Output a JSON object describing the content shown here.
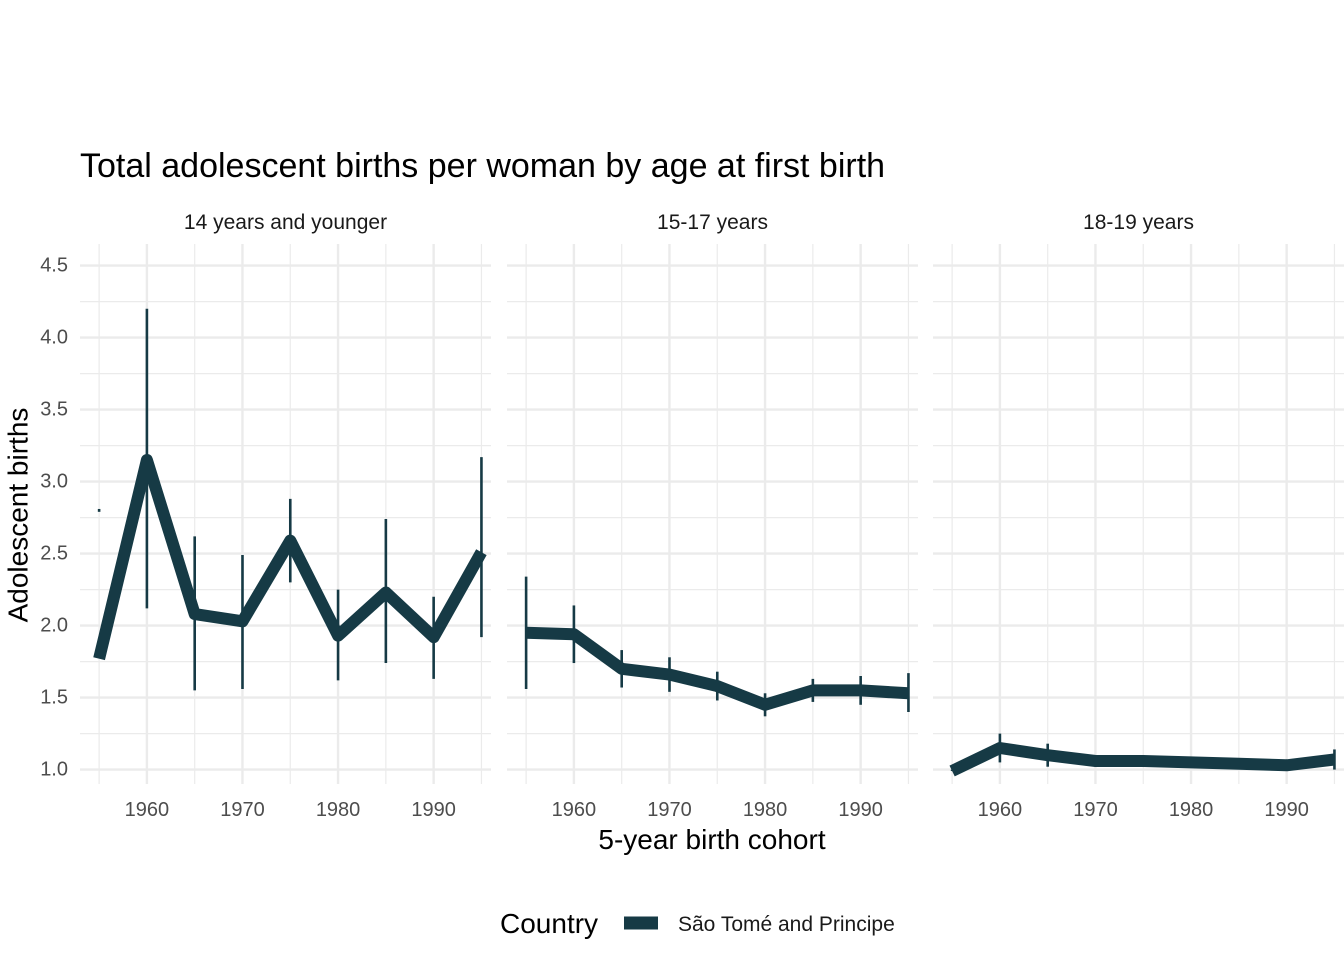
{
  "chart_data": {
    "type": "line",
    "title": "Total adolescent births per woman by age at first birth",
    "xlabel": "5-year birth cohort",
    "ylabel": "Adolescent births",
    "legend_title": "Country",
    "legend_position": "bottom",
    "grid": true,
    "xlim": [
      1953,
      1996
    ],
    "ylim": [
      0.9,
      4.65
    ],
    "x_ticks": [
      1960,
      1970,
      1980,
      1990
    ],
    "y_ticks": [
      1.0,
      1.5,
      2.0,
      2.5,
      3.0,
      3.5,
      4.0,
      4.5
    ],
    "colors": {
      "series": "#163a45",
      "grid": "#ebebeb"
    },
    "series": [
      {
        "name": "São Tomé and Principe"
      }
    ],
    "panels": [
      {
        "label": "14 years and younger",
        "x": [
          1955,
          1960,
          1965,
          1970,
          1975,
          1980,
          1985,
          1990,
          1995
        ],
        "y": [
          1.77,
          3.15,
          2.08,
          2.03,
          2.59,
          1.93,
          2.23,
          1.92,
          2.51
        ],
        "lower": [
          2.79,
          2.12,
          1.55,
          1.56,
          2.3,
          1.62,
          1.74,
          1.63,
          1.92
        ],
        "upper": [
          2.81,
          4.2,
          2.62,
          2.49,
          2.88,
          2.25,
          2.74,
          2.2,
          3.17
        ]
      },
      {
        "label": "15-17 years",
        "x": [
          1955,
          1960,
          1965,
          1970,
          1975,
          1980,
          1985,
          1990,
          1995
        ],
        "y": [
          1.95,
          1.94,
          1.7,
          1.66,
          1.58,
          1.45,
          1.55,
          1.55,
          1.53
        ],
        "lower": [
          1.56,
          1.74,
          1.57,
          1.54,
          1.48,
          1.37,
          1.47,
          1.45,
          1.4
        ],
        "upper": [
          2.34,
          2.14,
          1.83,
          1.78,
          1.68,
          1.53,
          1.63,
          1.65,
          1.67
        ]
      },
      {
        "label": "18-19 years",
        "x": [
          1955,
          1960,
          1965,
          1970,
          1975,
          1980,
          1985,
          1990,
          1995
        ],
        "y": [
          0.99,
          1.15,
          1.1,
          1.06,
          1.06,
          1.05,
          1.04,
          1.03,
          1.07
        ],
        "lower": [
          0.99,
          1.05,
          1.02,
          1.04,
          1.04,
          1.04,
          1.03,
          1.02,
          1.0
        ],
        "upper": [
          1.0,
          1.25,
          1.18,
          1.08,
          1.08,
          1.06,
          1.05,
          1.04,
          1.14
        ]
      }
    ]
  }
}
